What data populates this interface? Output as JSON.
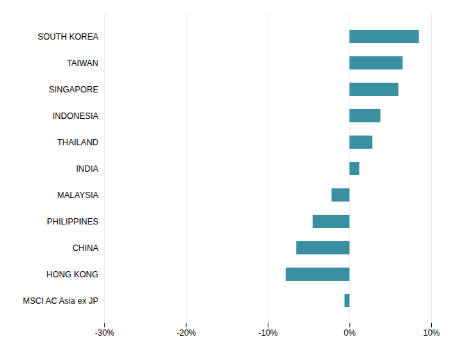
{
  "chart_data": {
    "type": "bar",
    "orientation": "horizontal",
    "categories": [
      "SOUTH KOREA",
      "TAIWAN",
      "SINGAPORE",
      "INDONESIA",
      "THAILAND",
      "INDIA",
      "MALAYSIA",
      "PHILIPPINES",
      "CHINA",
      "HONG KONG",
      "MSCI AC Asia ex JP"
    ],
    "values": [
      8.5,
      6.5,
      6.0,
      3.8,
      2.8,
      1.2,
      -2.2,
      -4.5,
      -6.5,
      -7.8,
      -0.6
    ],
    "color": "#3a8fa0",
    "xlim": [
      -30,
      10
    ],
    "xticks": [
      {
        "value": -30,
        "label": "-30%"
      },
      {
        "value": -20,
        "label": "-20%"
      },
      {
        "value": -10,
        "label": "-10%"
      },
      {
        "value": 0,
        "label": "0%"
      },
      {
        "value": 10,
        "label": "10%"
      }
    ],
    "grid": true
  }
}
